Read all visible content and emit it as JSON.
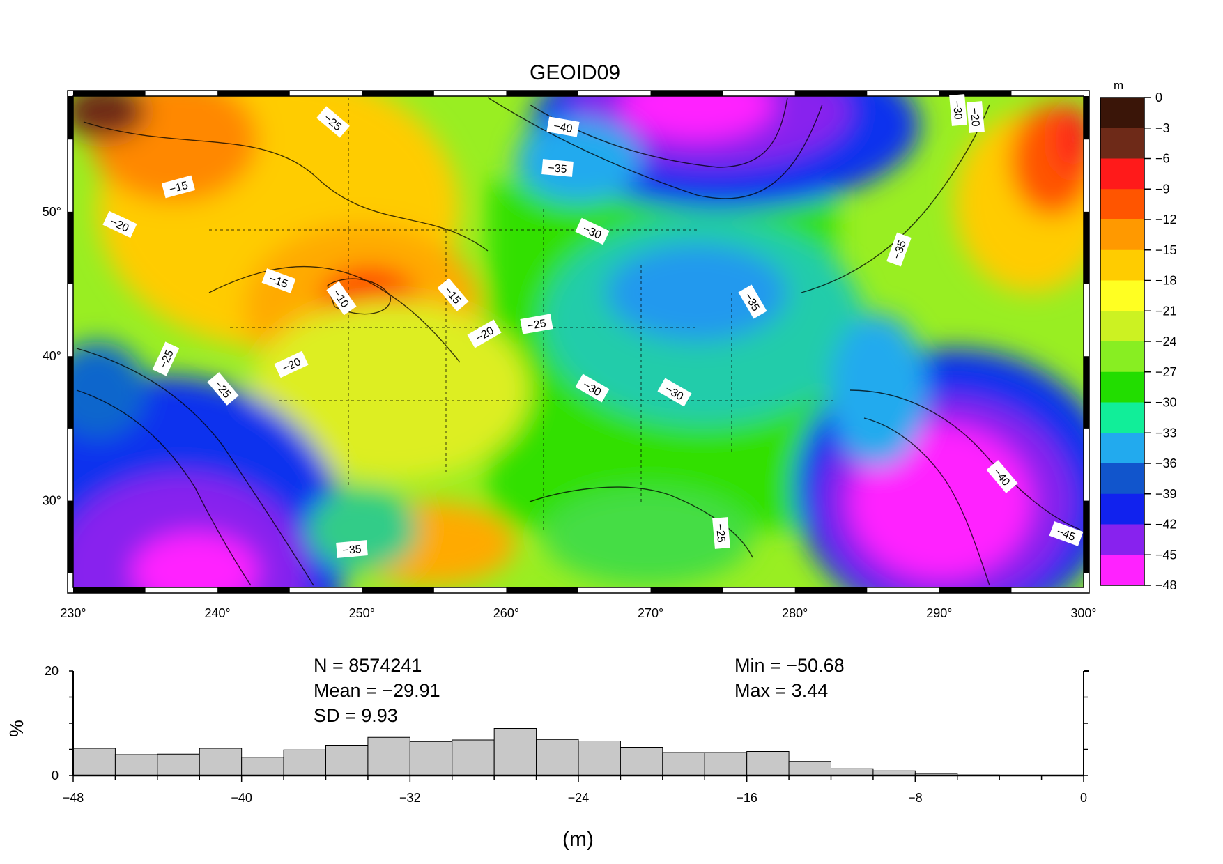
{
  "map": {
    "title": "GEOID09",
    "lon_ticks": [
      "230°",
      "240°",
      "250°",
      "260°",
      "270°",
      "280°",
      "290°",
      "300°"
    ],
    "lat_ticks": [
      "30°",
      "40°",
      "50°"
    ],
    "lon_range": [
      230,
      300
    ],
    "lat_range": [
      24,
      58
    ],
    "contour_labels": [
      "−25",
      "−15",
      "−20",
      "−15",
      "−10",
      "−15",
      "−20",
      "−25",
      "−30",
      "−20",
      "−25",
      "−35",
      "−40",
      "−35",
      "−30",
      "−30",
      "−35",
      "−25",
      "−20",
      "−30",
      "−35",
      "−40",
      "−45",
      "−25"
    ],
    "colorbar": {
      "unit": "m",
      "ticks": [
        "0",
        "−3",
        "−6",
        "−9",
        "−12",
        "−15",
        "−18",
        "−21",
        "−24",
        "−27",
        "−30",
        "−33",
        "−36",
        "−39",
        "−42",
        "−45",
        "−48"
      ],
      "colors": [
        "#3a1508",
        "#6e2a18",
        "#ff1a1a",
        "#ff5500",
        "#ff9900",
        "#ffcc00",
        "#ffff22",
        "#ccf222",
        "#88ee22",
        "#22dd00",
        "#11ee99",
        "#22aaee",
        "#1155cc",
        "#1122ee",
        "#8822ee",
        "#ff22ff"
      ]
    }
  },
  "stats": {
    "n": "N =  8574241",
    "mean": "Mean = −29.91",
    "sd": "SD = 9.93",
    "min": "Min = −50.68",
    "max": "Max = 3.44"
  },
  "chart_data": {
    "type": "bar",
    "xlabel": "(m)",
    "ylabel": "%",
    "xlim": [
      -48,
      0
    ],
    "ylim": [
      0,
      20
    ],
    "x_ticks": [
      "−48",
      "−40",
      "−32",
      "−24",
      "−16",
      "−8",
      "0"
    ],
    "y_ticks": [
      "0",
      "20"
    ],
    "bin_width": 2,
    "bin_starts": [
      -48,
      -46,
      -44,
      -42,
      -40,
      -38,
      -36,
      -34,
      -32,
      -30,
      -28,
      -26,
      -24,
      -22,
      -20,
      -18,
      -16,
      -14,
      -12,
      -10,
      -8,
      -6
    ],
    "values": [
      5.2,
      4.0,
      4.1,
      5.2,
      3.5,
      4.9,
      5.8,
      7.3,
      6.5,
      6.8,
      9.0,
      6.9,
      6.6,
      5.4,
      4.4,
      4.4,
      4.6,
      2.7,
      1.3,
      0.9,
      0.4,
      0.1
    ],
    "bar_color": "#c8c8c8"
  }
}
